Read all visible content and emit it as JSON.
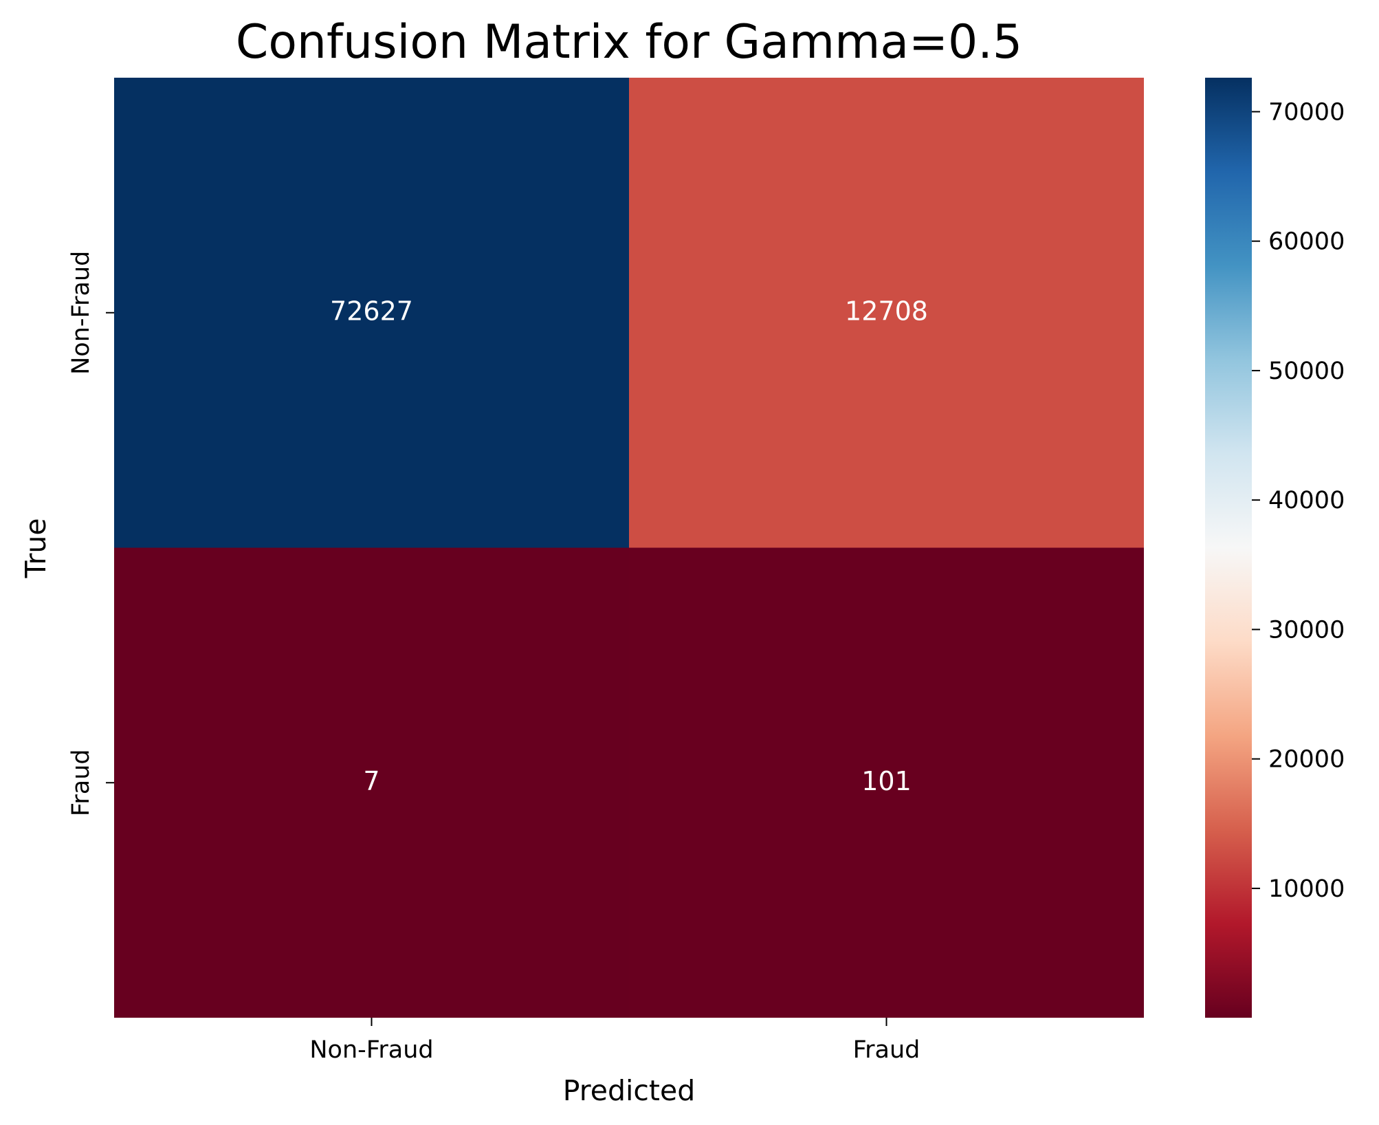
{
  "chart_data": {
    "type": "heatmap",
    "title": "Confusion Matrix for Gamma=0.5",
    "xlabel": "Predicted",
    "ylabel": "True",
    "x_categories": [
      "Non-Fraud",
      "Fraud"
    ],
    "y_categories": [
      "Non-Fraud",
      "Fraud"
    ],
    "values": [
      [
        72627,
        12708
      ],
      [
        7,
        101
      ]
    ],
    "colormap": "RdBu",
    "colorbar": {
      "min": 7,
      "max": 72627,
      "ticks": [
        10000,
        20000,
        30000,
        40000,
        50000,
        60000,
        70000
      ],
      "tick_labels": [
        "10000",
        "20000",
        "30000",
        "40000",
        "50000",
        "60000",
        "70000"
      ]
    },
    "colors": {
      "cell_text": "#ffffff",
      "low": "#67001f",
      "mid": "#f7f7f7",
      "high": "#053061"
    },
    "grid": false,
    "annotations": true
  }
}
